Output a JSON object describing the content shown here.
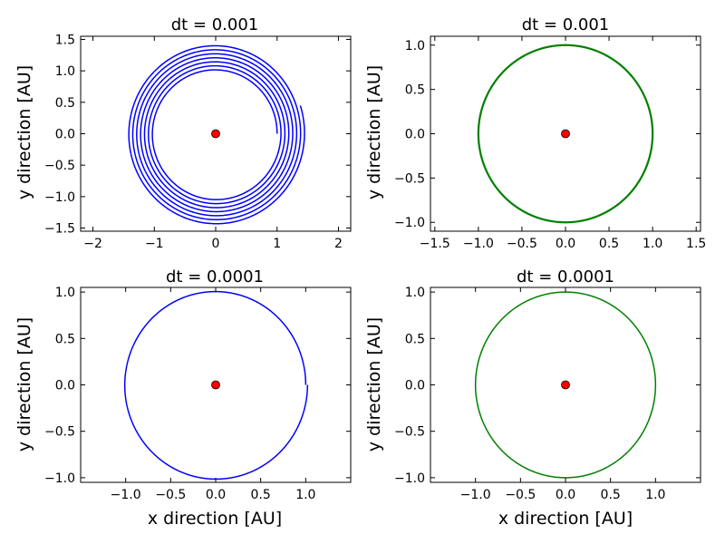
{
  "chart_data": [
    {
      "type": "line",
      "title": "dt = 0.001",
      "xlabel": "",
      "ylabel": "y direction [AU]",
      "xlim": [
        -2.2,
        2.2
      ],
      "ylim": [
        -1.55,
        1.55
      ],
      "xticks": [
        -2,
        -1,
        0,
        1,
        2
      ],
      "xtick_labels": [
        "−2",
        "−1",
        "0",
        "1",
        "2"
      ],
      "yticks": [
        -1.5,
        -1.0,
        -0.5,
        0.0,
        0.5,
        1.0,
        1.5
      ],
      "ytick_labels": [
        "−1.5",
        "−1.0",
        "−0.5",
        "0.0",
        "0.5",
        "1.0",
        "1.5"
      ],
      "grid": false,
      "series": [
        {
          "color": "#0000ff",
          "kind": "spiral",
          "r_start": 1.0,
          "r_end": 1.45,
          "turns": 7.05
        }
      ],
      "central_body": {
        "x": 0.0,
        "y": 0.0,
        "color": "#ff0000"
      }
    },
    {
      "type": "line",
      "title": "dt = 0.001",
      "xlabel": "",
      "ylabel": "y direction [AU]",
      "xlim": [
        -1.55,
        1.55
      ],
      "ylim": [
        -1.1,
        1.1
      ],
      "xticks": [
        -1.5,
        -1.0,
        -0.5,
        0.0,
        0.5,
        1.0,
        1.5
      ],
      "xtick_labels": [
        "−1.5",
        "−1.0",
        "−0.5",
        "0.0",
        "0.5",
        "1.0",
        "1.5"
      ],
      "yticks": [
        -1.0,
        -0.5,
        0.0,
        0.5,
        1.0
      ],
      "ytick_labels": [
        "−1.0",
        "−0.5",
        "0.0",
        "0.5",
        "1.0"
      ],
      "grid": false,
      "series": [
        {
          "color": "#008000",
          "kind": "circle",
          "radius": 1.0
        }
      ],
      "central_body": {
        "x": 0.0,
        "y": 0.0,
        "color": "#ff0000"
      }
    },
    {
      "type": "line",
      "title": "dt = 0.0001",
      "xlabel": "x direction [AU]",
      "ylabel": "y direction [AU]",
      "xlim": [
        -1.5,
        1.5
      ],
      "ylim": [
        -1.05,
        1.05
      ],
      "xticks": [
        -1.0,
        -0.5,
        0.0,
        0.5,
        1.0
      ],
      "xtick_labels": [
        "−1.0",
        "−0.5",
        "0.0",
        "0.5",
        "1.0"
      ],
      "yticks": [
        -1.0,
        -0.5,
        0.0,
        0.5,
        1.0
      ],
      "ytick_labels": [
        "−1.0",
        "−0.5",
        "0.0",
        "0.5",
        "1.0"
      ],
      "grid": false,
      "series": [
        {
          "color": "#0000ff",
          "kind": "spiral",
          "r_start": 1.0,
          "r_end": 1.02,
          "turns": 1.0
        }
      ],
      "central_body": {
        "x": 0.0,
        "y": 0.0,
        "color": "#ff0000"
      }
    },
    {
      "type": "line",
      "title": "dt = 0.0001",
      "xlabel": "x direction [AU]",
      "ylabel": "y direction [AU]",
      "xlim": [
        -1.5,
        1.5
      ],
      "ylim": [
        -1.05,
        1.05
      ],
      "xticks": [
        -1.0,
        -0.5,
        0.0,
        0.5,
        1.0
      ],
      "xtick_labels": [
        "−1.0",
        "−0.5",
        "0.0",
        "0.5",
        "1.0"
      ],
      "yticks": [
        -1.0,
        -0.5,
        0.0,
        0.5,
        1.0
      ],
      "ytick_labels": [
        "−1.0",
        "−0.5",
        "0.0",
        "0.5",
        "1.0"
      ],
      "grid": false,
      "series": [
        {
          "color": "#008000",
          "kind": "circle",
          "radius": 1.0
        }
      ],
      "central_body": {
        "x": 0.0,
        "y": 0.0,
        "color": "#ff0000"
      }
    }
  ]
}
